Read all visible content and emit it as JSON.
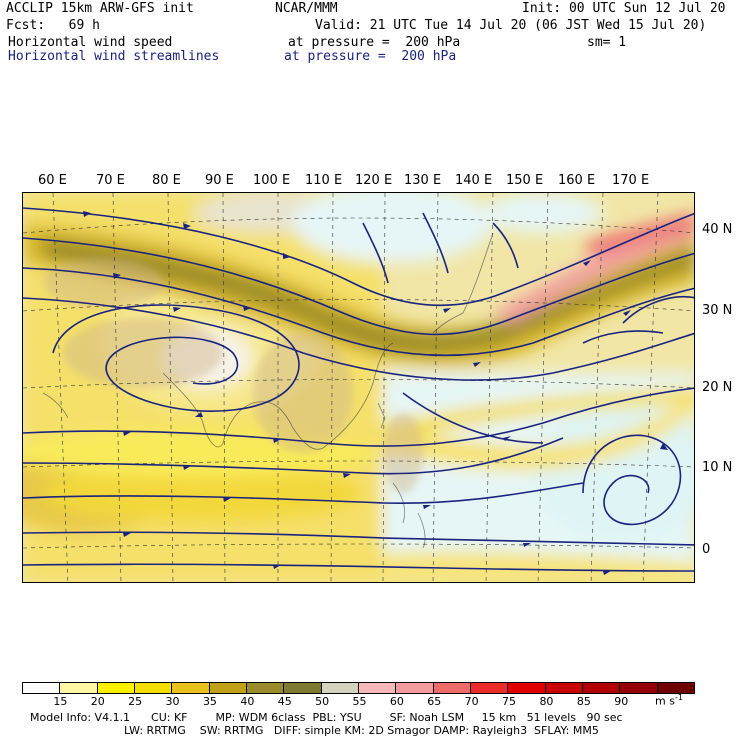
{
  "header": {
    "model": "ACCLIP 15km ARW-GFS init",
    "center": "NCAR/MMM",
    "init": "Init: 00 UTC Sun 12 Jul 20",
    "fcst": "Fcst:   69 h",
    "valid": "Valid: 21 UTC Tue 14 Jul 20 (06 JST Wed 15 Jul 20)",
    "field1": "Horizontal wind speed",
    "pressure1": "at pressure =  200 hPa",
    "sm": "sm= 1",
    "field2": "Horizontal wind streamlines",
    "pressure2": "at pressure =  200 hPa"
  },
  "lon_labels": [
    "60 E",
    "70 E",
    "80 E",
    "90 E",
    "100 E",
    "110 E",
    "120 E",
    "130 E",
    "140 E",
    "150 E",
    "160 E",
    "170 E"
  ],
  "lat_labels": [
    "40 N",
    "30 N",
    "20 N",
    "10 N",
    "0"
  ],
  "colorbar": {
    "labels": [
      "15",
      "20",
      "25",
      "30",
      "35",
      "40",
      "45",
      "50",
      "55",
      "60",
      "65",
      "70",
      "75",
      "80",
      "85",
      "90"
    ],
    "units": "m s",
    "units_exp": "-1",
    "colors": [
      "#ffffff",
      "#fff6a6",
      "#fff200",
      "#f5dd00",
      "#e8c21b",
      "#bfa21a",
      "#9b8b2c",
      "#7e7a30",
      "#d6d2c0",
      "#f6b8b8",
      "#f39a9a",
      "#ef6b6b",
      "#ee2b2b",
      "#e00000",
      "#c80000",
      "#b00000",
      "#960000",
      "#6d0000"
    ]
  },
  "footer": {
    "line1": "Model Info: V4.1.1      CU: KF        MP: WDM 6class  PBL: YSU        SF: Noah LSM     15 km   51 levels   90 sec",
    "line2": "LW: RRTMG    SW: RRTMG   DIFF: simple KM: 2D Smagor DAMP: Rayleigh3  SFLAY: MM5"
  }
}
